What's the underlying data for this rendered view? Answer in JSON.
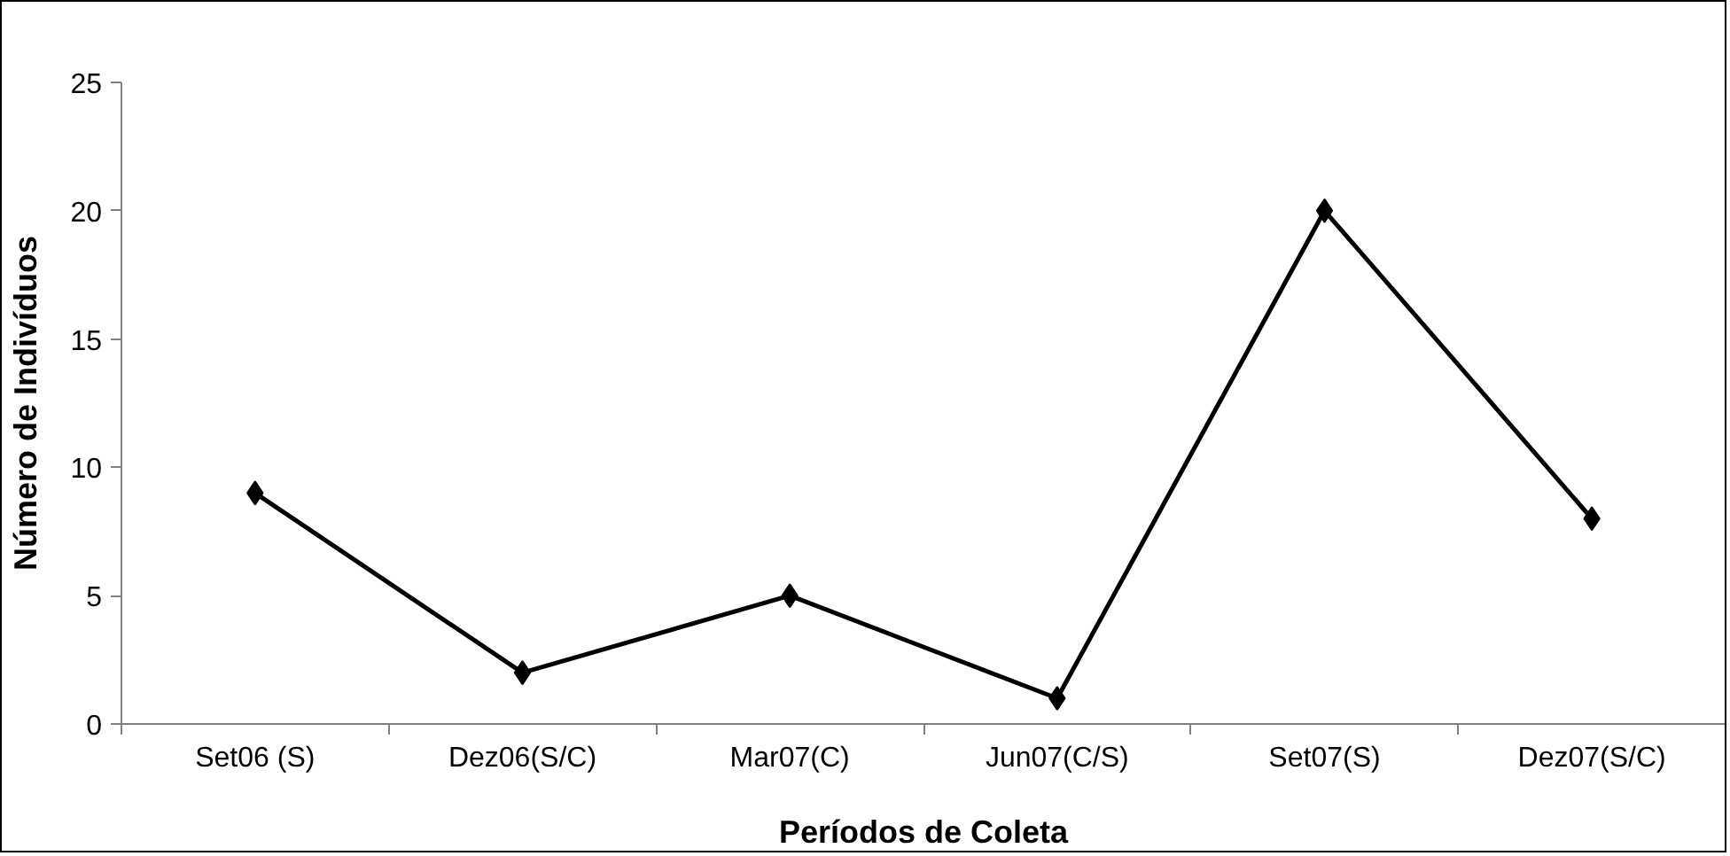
{
  "chart_data": {
    "type": "line",
    "xlabel": "Períodos de Coleta",
    "ylabel": "Número de Indivíduos",
    "categories": [
      "Set06 (S)",
      "Dez06(S/C)",
      "Mar07(C)",
      "Jun07(C/S)",
      "Set07(S)",
      "Dez07(S/C)"
    ],
    "series": [
      {
        "color": "#000000",
        "values": [
          9,
          2,
          5,
          1,
          20,
          8
        ]
      }
    ],
    "ylim": [
      0,
      25
    ],
    "yticks": [
      0,
      5,
      10,
      15,
      20,
      25
    ],
    "grid": false,
    "marker": "diamond",
    "line_style": "solid"
  }
}
